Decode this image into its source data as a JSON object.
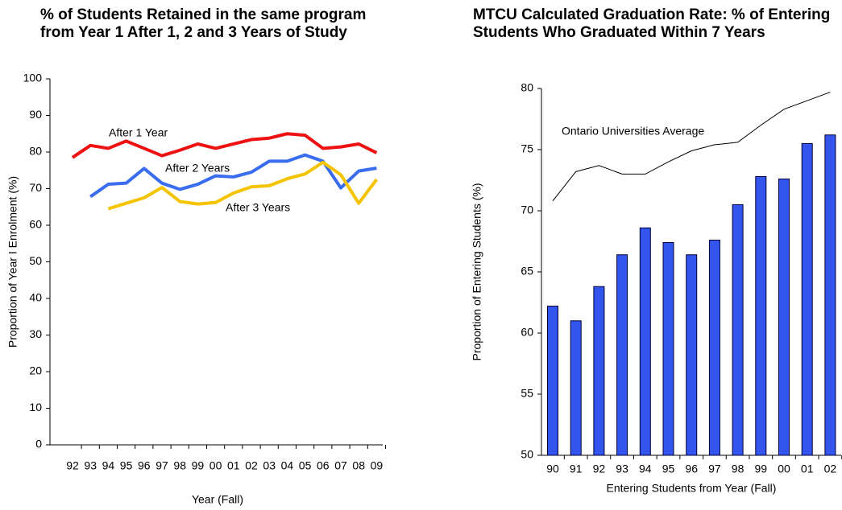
{
  "chart_data": [
    {
      "type": "line",
      "title": "% of Students Retained in the same program from Year 1 After 1, 2 and 3 Years of Study",
      "x_label": "Year (Fall)",
      "y_label": "Proportion of Year I Enrolment (%)",
      "categories": [
        "92",
        "93",
        "94",
        "95",
        "96",
        "97",
        "98",
        "99",
        "00",
        "01",
        "02",
        "03",
        "04",
        "05",
        "06",
        "07",
        "08",
        "09"
      ],
      "series": [
        {
          "name": "After 1 Year",
          "color": "#ee1111",
          "values": [
            78.5,
            81.8,
            81,
            83,
            81,
            79,
            80.5,
            82.2,
            81,
            82.2,
            83.4,
            83.8,
            85,
            84.6,
            81,
            81.4,
            82.2,
            79.8
          ]
        },
        {
          "name": "After 2 Years",
          "color": "#3a6cf0",
          "values": [
            null,
            67.8,
            71.2,
            71.5,
            75.5,
            71.5,
            69.8,
            71.2,
            73.5,
            73.2,
            74.5,
            77.5,
            77.5,
            79.2,
            77.5,
            70.2,
            74.8,
            75.6
          ]
        },
        {
          "name": "After 3 Years",
          "color": "#f5c400",
          "values": [
            null,
            null,
            64.5,
            66,
            67.5,
            70.3,
            66.5,
            65.8,
            66.2,
            68.8,
            70.5,
            70.8,
            72.7,
            74,
            77.2,
            73.8,
            66,
            72.5
          ]
        }
      ],
      "ylim": [
        0,
        100
      ],
      "yticks": [
        0,
        10,
        20,
        30,
        40,
        50,
        60,
        70,
        80,
        90,
        100
      ],
      "grid": false
    },
    {
      "type": "bar",
      "title": "MTCU Calculated Graduation Rate: % of Entering Students Who Graduated Within 7 Years",
      "x_label": "Entering Students from Year (Fall)",
      "y_label": "Proportion of Entering Students (%)",
      "categories": [
        "90",
        "91",
        "92",
        "93",
        "94",
        "95",
        "96",
        "97",
        "98",
        "99",
        "00",
        "01",
        "02"
      ],
      "values": [
        62.2,
        61,
        63.8,
        66.4,
        68.6,
        67.4,
        66.4,
        67.6,
        70.5,
        72.8,
        72.6,
        75.5,
        76.2
      ],
      "color": "#3355ee",
      "overlay": {
        "type": "line",
        "name": "Ontario Universities Average",
        "color": "#000000",
        "values": [
          70.8,
          73.2,
          73.7,
          73,
          73,
          74,
          74.9,
          75.4,
          75.6,
          77,
          78.3,
          79,
          79.7
        ]
      },
      "ylim": [
        50,
        80
      ],
      "yticks": [
        50,
        55,
        60,
        65,
        70,
        75,
        80
      ],
      "grid": false
    }
  ]
}
